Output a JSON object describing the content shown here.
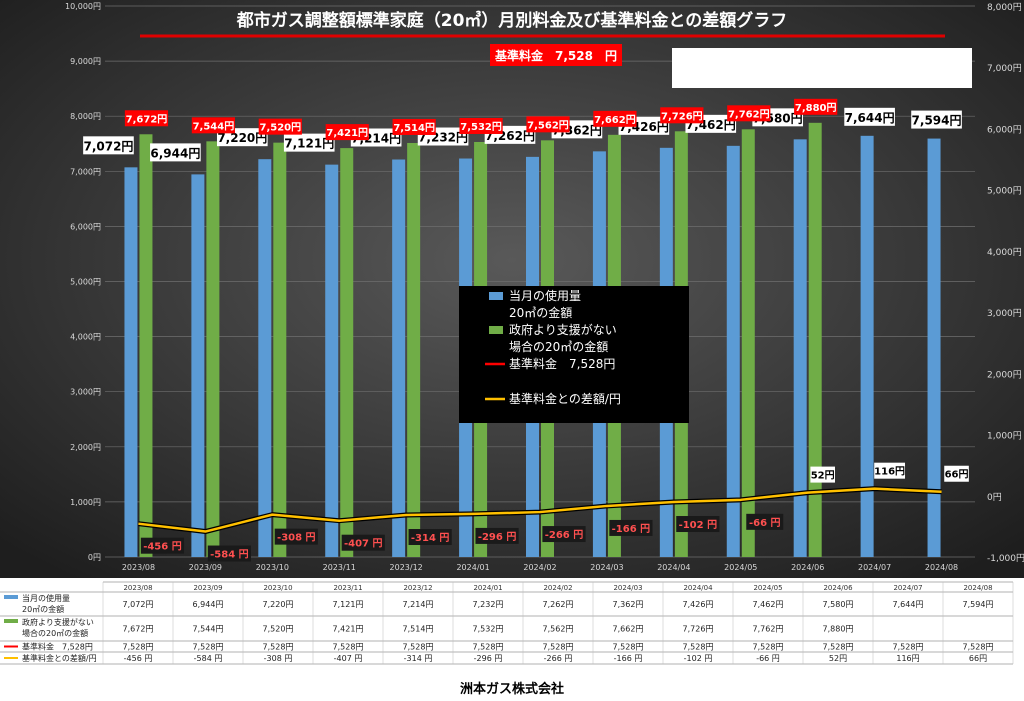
{
  "chart_data": {
    "type": "bar",
    "title": "都市ガス調整額標準家庭（20㎥）月別料金及び基準料金との差額グラフ",
    "base_label": "基準料金　7,528　円",
    "company": "洲本ガス株式会社",
    "categories": [
      "2023/08",
      "2023/09",
      "2023/10",
      "2023/11",
      "2023/12",
      "2024/01",
      "2024/02",
      "2024/03",
      "2024/04",
      "2024/05",
      "2024/06",
      "2024/07",
      "2024/08"
    ],
    "ylim_left": [
      0,
      10000
    ],
    "ylim_right": [
      -1000,
      8000
    ],
    "yticks_left": [
      "0円",
      "1,000円",
      "2,000円",
      "3,000円",
      "4,000円",
      "5,000円",
      "6,000円",
      "7,000円",
      "8,000円",
      "9,000円",
      "10,000円"
    ],
    "yticks_right": [
      "-1,000円",
      "0円",
      "1,000円",
      "2,000円",
      "3,000円",
      "4,000円",
      "5,000円",
      "6,000円",
      "7,000円",
      "8,000円"
    ],
    "grid": true,
    "legend_position": "center",
    "colors": {
      "blue": "#5B9BD5",
      "green": "#70AD47",
      "red": "#FF0000",
      "yellow": "#FFC000",
      "background": "#2b2b2b"
    },
    "series": [
      {
        "name": "当月の使用量20㎥の金額",
        "legend": [
          "当月の使用量",
          "20㎥の金額"
        ],
        "table": [
          "当月の使用量",
          "20㎥の金額"
        ],
        "kind": "bar",
        "values": [
          7072,
          6944,
          7220,
          7121,
          7214,
          7232,
          7262,
          7362,
          7426,
          7462,
          7580,
          7644,
          7594
        ],
        "labels": [
          "7,072円",
          "6,944円",
          "7,220円",
          "7,121円",
          "7,214円",
          "7,232円",
          "7,262円",
          "7,362円",
          "7,426円",
          "7,462円",
          "7,580円",
          "7,644円",
          "7,594円"
        ],
        "table_values": [
          "7,072円",
          "6,944円",
          "7,220円",
          "7,121円",
          "7,214円",
          "7,232円",
          "7,262円",
          "7,362円",
          "7,426円",
          "7,462円",
          "7,580円",
          "7,644円",
          "7,594円"
        ]
      },
      {
        "name": "政府より支援がない場合の20㎥の金額",
        "legend": [
          "政府より支援がない",
          "場合の20㎥の金額"
        ],
        "table": [
          "政府より支援がない",
          "場合の20㎥の金額"
        ],
        "kind": "bar",
        "values": [
          7672,
          7544,
          7520,
          7421,
          7514,
          7532,
          7562,
          7662,
          7726,
          7762,
          7880,
          null,
          null
        ],
        "labels": [
          "7,672円",
          "7,544円",
          "7,520円",
          "7,421円",
          "7,514円",
          "7,532円",
          "7,562円",
          "7,662円",
          "7,726円",
          "7,762円",
          "7,880円",
          "",
          ""
        ],
        "table_values": [
          "7,672円",
          "7,544円",
          "7,520円",
          "7,421円",
          "7,514円",
          "7,532円",
          "7,562円",
          "7,662円",
          "7,726円",
          "7,762円",
          "7,880円",
          "",
          ""
        ]
      },
      {
        "name": "基準料金　7,528円",
        "legend": [
          "基準料金　7,528円"
        ],
        "table": [
          "基準料金　7,528円"
        ],
        "kind": "line",
        "values": [
          7528,
          7528,
          7528,
          7528,
          7528,
          7528,
          7528,
          7528,
          7528,
          7528,
          7528,
          7528,
          7528
        ],
        "table_values": [
          "7,528円",
          "7,528円",
          "7,528円",
          "7,528円",
          "7,528円",
          "7,528円",
          "7,528円",
          "7,528円",
          "7,528円",
          "7,528円",
          "7,528円",
          "7,528円",
          "7,528円"
        ]
      },
      {
        "name": "基準料金との差額/円",
        "legend": [
          "基準料金との差額/円"
        ],
        "table": [
          "基準料金との差額/円"
        ],
        "kind": "line",
        "axis": "right",
        "values": [
          -456,
          -584,
          -308,
          -407,
          -314,
          -296,
          -266,
          -166,
          -102,
          -66,
          52,
          116,
          66
        ],
        "labels": [
          "-456 円",
          "-584 円",
          "-308 円",
          "-407 円",
          "-314 円",
          "-296 円",
          "-266 円",
          "-166 円",
          "-102 円",
          "-66 円",
          "52円",
          "116円",
          "66円"
        ],
        "table_values": [
          "-456 円",
          "-584 円",
          "-308 円",
          "-407 円",
          "-314 円",
          "-296 円",
          "-266 円",
          "-166 円",
          "-102 円",
          "-66 円",
          "52円",
          "116円",
          "66円"
        ]
      }
    ]
  }
}
